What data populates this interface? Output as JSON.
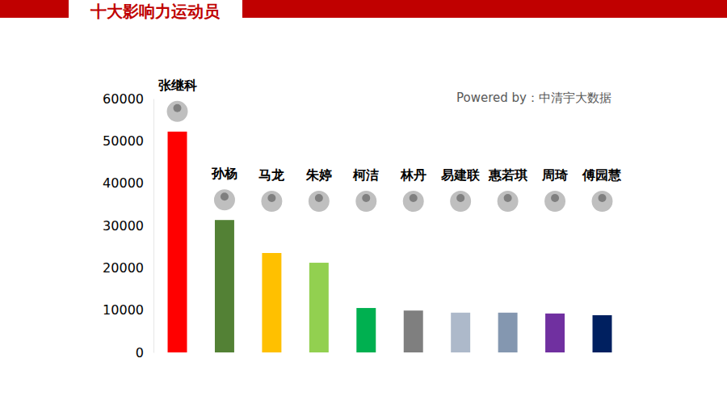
{
  "chart_data": {
    "type": "bar",
    "title": "十大影响力运动员",
    "annotation": "Powered by：中清宇大数据",
    "categories": [
      "张继科",
      "孙杨",
      "马龙",
      "朱婷",
      "柯洁",
      "林丹",
      "易建联",
      "惠若琪",
      "周琦",
      "傅园慧"
    ],
    "values": [
      52200,
      31300,
      23500,
      21200,
      10500,
      9900,
      9400,
      9400,
      9200,
      8800
    ],
    "colors": [
      "#ff0000",
      "#538135",
      "#ffc000",
      "#92d050",
      "#00b050",
      "#7f7f7f",
      "#adb9ca",
      "#8497b0",
      "#7030a0",
      "#002060"
    ],
    "ylim": [
      0,
      60000
    ],
    "yticks": [
      0,
      10000,
      20000,
      30000,
      40000,
      50000,
      60000
    ],
    "grid": false
  }
}
